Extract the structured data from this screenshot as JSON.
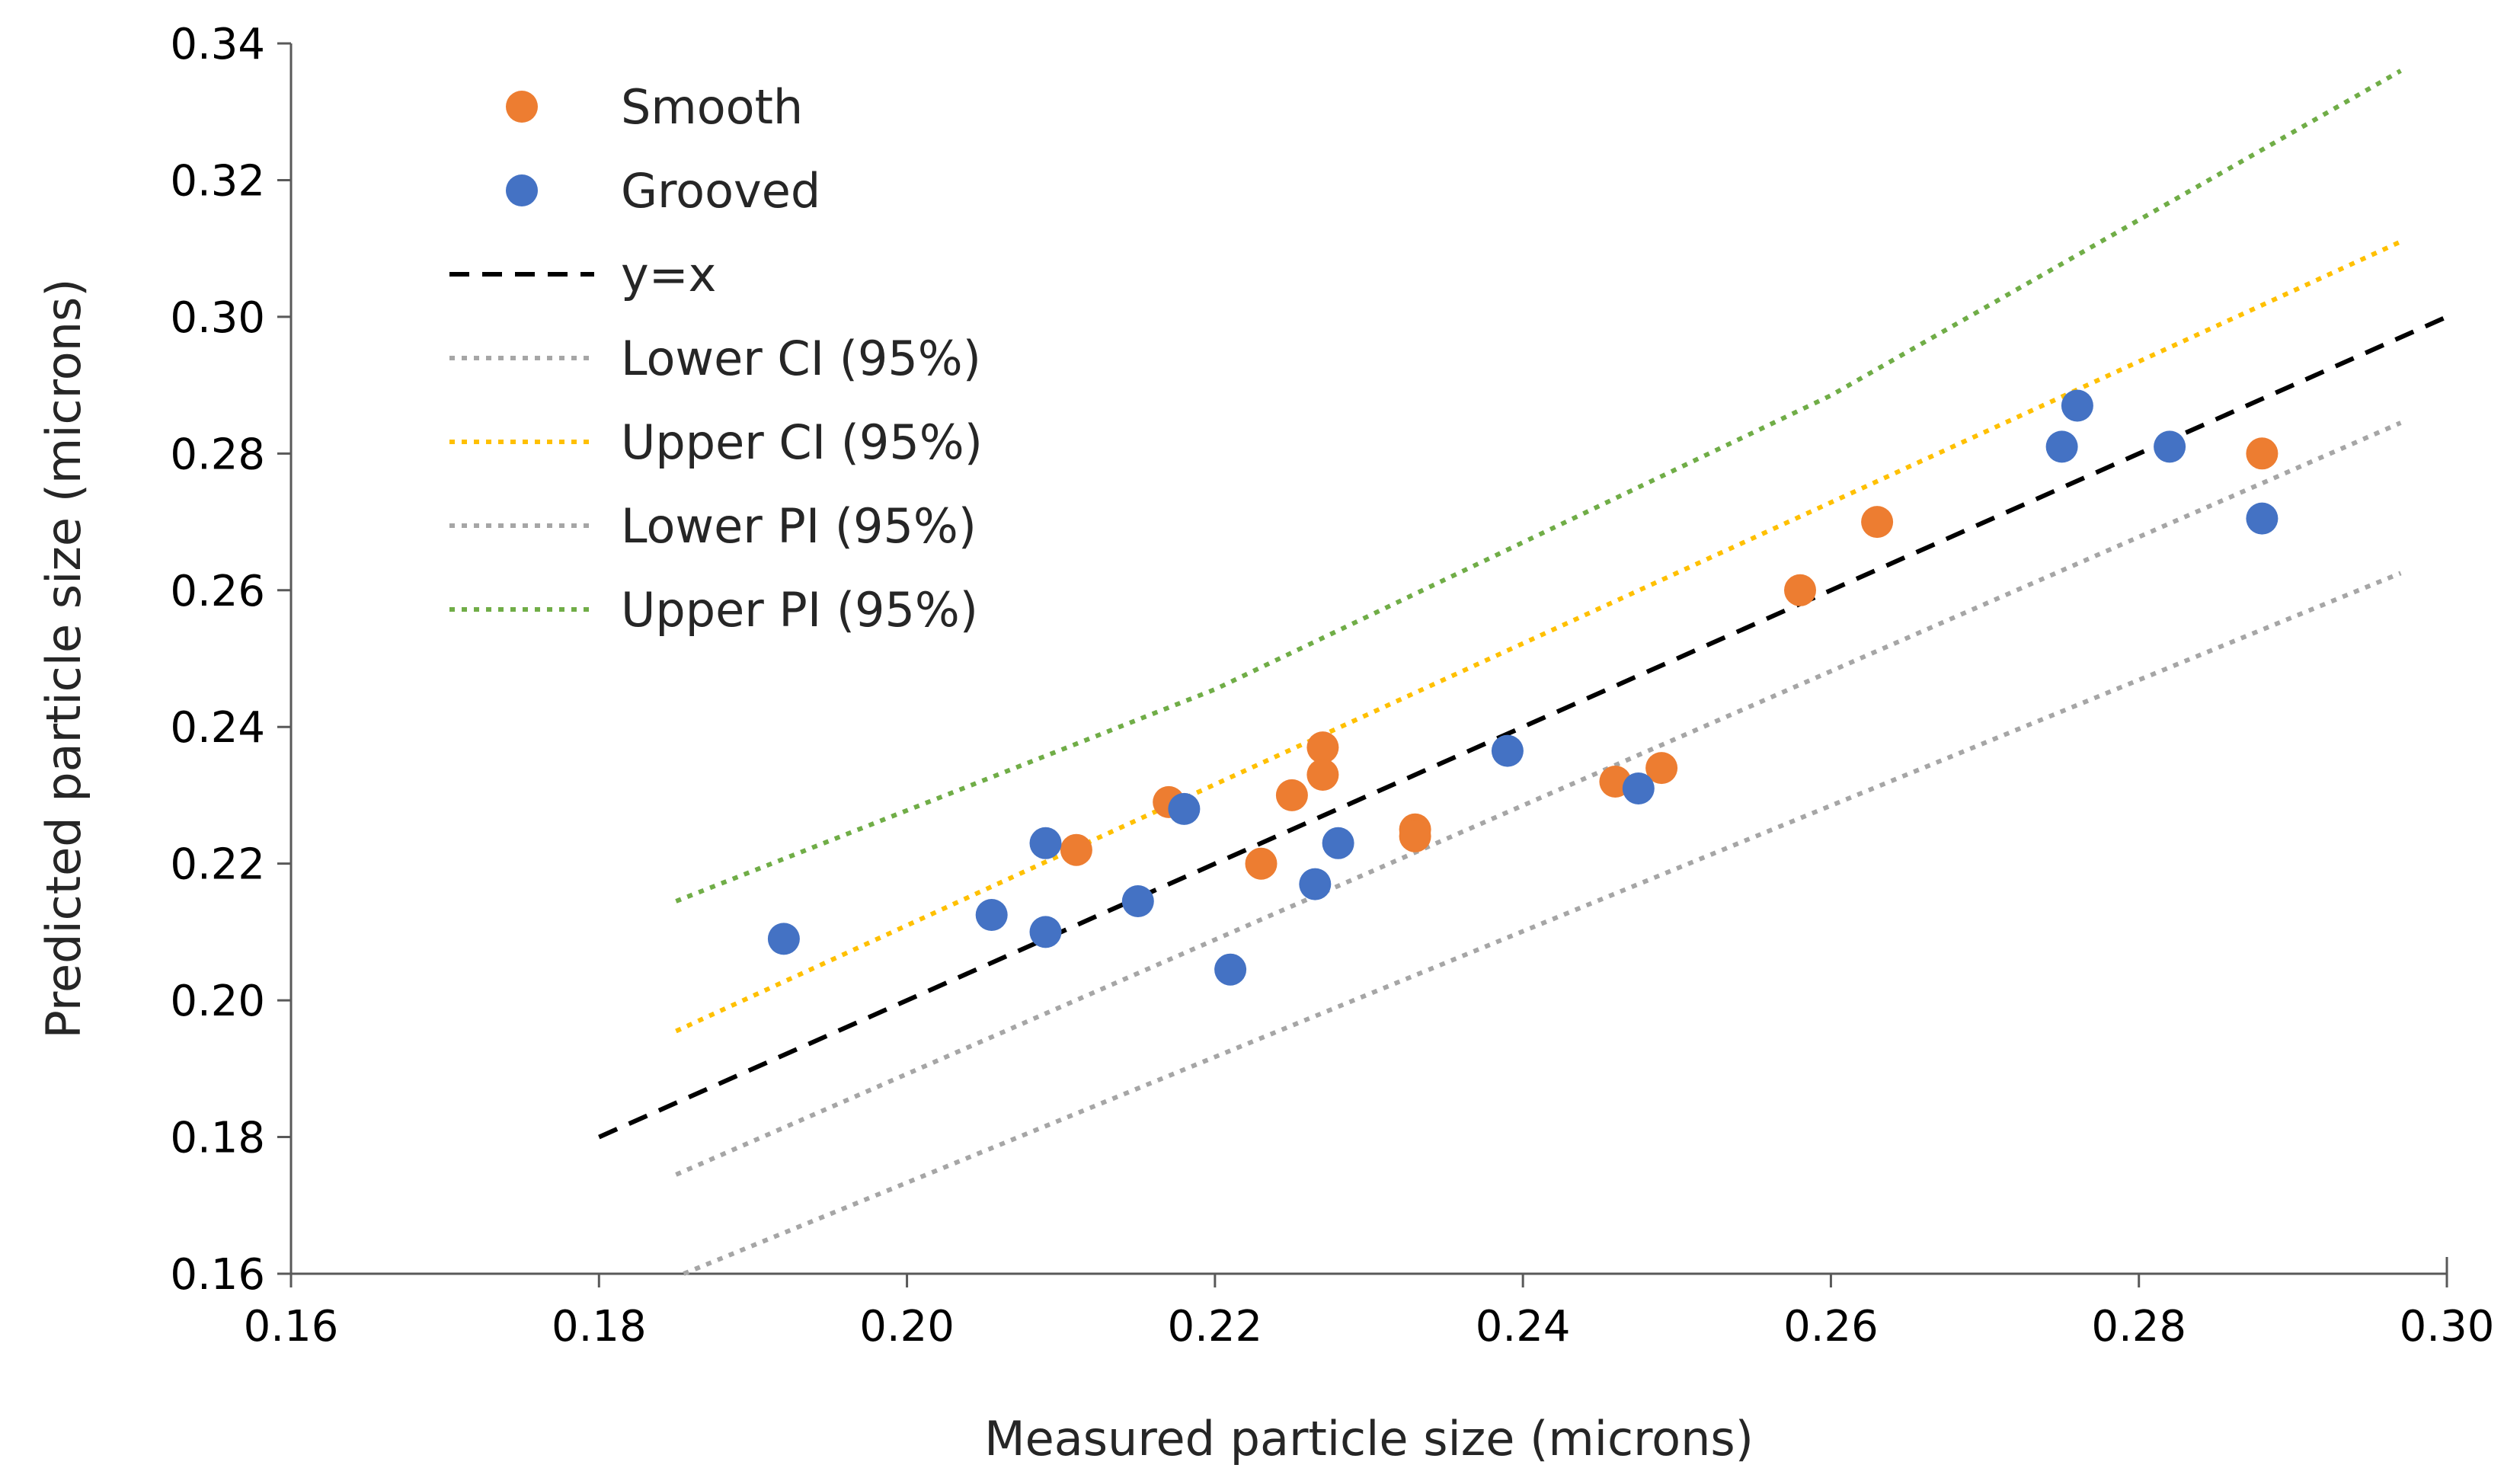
{
  "chart_data": {
    "type": "scatter",
    "title": "",
    "xlabel": "Measured particle size (microns)",
    "ylabel": "Predicted particle size (microns)",
    "xlim": [
      0.16,
      0.3
    ],
    "ylim": [
      0.16,
      0.34
    ],
    "xticks": [
      "0.16",
      "0.18",
      "0.20",
      "0.22",
      "0.24",
      "0.26",
      "0.28",
      "0.30"
    ],
    "yticks": [
      "0.16",
      "0.18",
      "0.20",
      "0.22",
      "0.24",
      "0.26",
      "0.28",
      "0.30",
      "0.32",
      "0.34"
    ],
    "legend_position": "top-left",
    "series": [
      {
        "name": "Smooth",
        "kind": "points",
        "color": "#ED7D31",
        "points": [
          [
            0.211,
            0.222
          ],
          [
            0.217,
            0.229
          ],
          [
            0.223,
            0.22
          ],
          [
            0.225,
            0.23
          ],
          [
            0.227,
            0.237
          ],
          [
            0.227,
            0.233
          ],
          [
            0.233,
            0.225
          ],
          [
            0.233,
            0.224
          ],
          [
            0.246,
            0.232
          ],
          [
            0.249,
            0.234
          ],
          [
            0.258,
            0.26
          ],
          [
            0.263,
            0.27
          ],
          [
            0.288,
            0.28
          ]
        ]
      },
      {
        "name": "Grooved",
        "kind": "points",
        "color": "#4472C4",
        "points": [
          [
            0.192,
            0.209
          ],
          [
            0.2055,
            0.2125
          ],
          [
            0.209,
            0.223
          ],
          [
            0.209,
            0.21
          ],
          [
            0.215,
            0.2145
          ],
          [
            0.218,
            0.228
          ],
          [
            0.221,
            0.2045
          ],
          [
            0.2265,
            0.217
          ],
          [
            0.228,
            0.223
          ],
          [
            0.239,
            0.2365
          ],
          [
            0.2475,
            0.231
          ],
          [
            0.275,
            0.281
          ],
          [
            0.276,
            0.287
          ],
          [
            0.282,
            0.281
          ],
          [
            0.288,
            0.2705
          ]
        ]
      },
      {
        "name": "y=x",
        "kind": "line",
        "style": "dashed",
        "color": "#000000",
        "points": [
          [
            0.18,
            0.18
          ],
          [
            0.3,
            0.3
          ]
        ]
      },
      {
        "name": "Lower CI (95%)",
        "kind": "line",
        "style": "dotted",
        "color": "#A6A6A6",
        "points": [
          [
            0.185,
            0.1745
          ],
          [
            0.297,
            0.2845
          ]
        ]
      },
      {
        "name": "Upper CI (95%)",
        "kind": "line",
        "style": "dotted",
        "color": "#FFC000",
        "points": [
          [
            0.185,
            0.1955
          ],
          [
            0.297,
            0.311
          ]
        ]
      },
      {
        "name": "Lower PI (95%)",
        "kind": "line",
        "style": "dotted",
        "color": "#A6A6A6",
        "points": [
          [
            0.1855,
            0.16
          ],
          [
            0.297,
            0.2625
          ]
        ]
      },
      {
        "name": "Upper PI (95%)",
        "kind": "line",
        "style": "dotted",
        "color": "#70AD47",
        "points": [
          [
            0.185,
            0.2145
          ],
          [
            0.22,
            0.2455
          ],
          [
            0.26,
            0.2885
          ],
          [
            0.297,
            0.336
          ]
        ]
      }
    ]
  }
}
